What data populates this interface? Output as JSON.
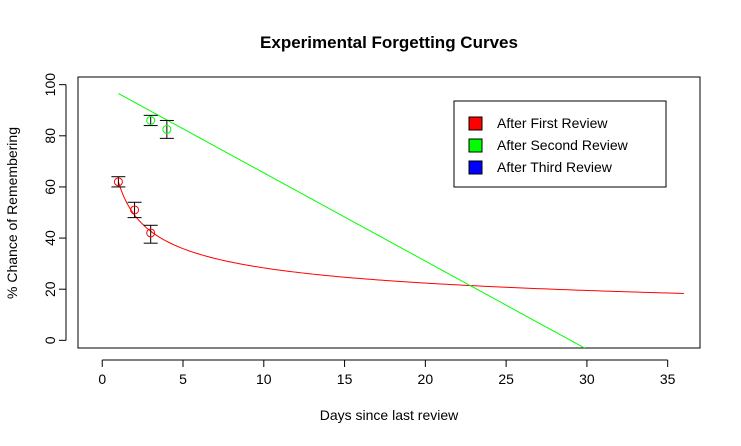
{
  "chart_data": {
    "type": "scatter",
    "title": "Experimental Forgetting Curves",
    "xlabel": "Days since last review",
    "ylabel": "% Chance of Remembering",
    "xlim": [
      -1.5,
      37
    ],
    "ylim": [
      -3,
      103
    ],
    "xticks": [
      0,
      5,
      10,
      15,
      20,
      25,
      30,
      35
    ],
    "yticks": [
      0,
      20,
      40,
      60,
      80,
      100
    ],
    "grid": false,
    "legend_position": "top-right",
    "legend": [
      {
        "label": "After First Review",
        "color": "#ff0000"
      },
      {
        "label": "After Second Review",
        "color": "#00ff00"
      },
      {
        "label": "After Third Review",
        "color": "#0000ff"
      }
    ],
    "series": [
      {
        "name": "After First Review",
        "color": "#ff0000",
        "points": [
          {
            "x": 1,
            "y": 62,
            "err_low": 60,
            "err_high": 64
          },
          {
            "x": 2,
            "y": 51,
            "err_low": 48,
            "err_high": 54
          },
          {
            "x": 3,
            "y": 42,
            "err_low": 38,
            "err_high": 45
          }
        ],
        "fit": {
          "kind": "power",
          "a": 62,
          "b": -0.34,
          "x_from": 1,
          "x_to": 36
        }
      },
      {
        "name": "After Second Review",
        "color": "#00ff00",
        "points": [
          {
            "x": 3,
            "y": 86,
            "err_low": 84,
            "err_high": 88
          },
          {
            "x": 4,
            "y": 82.5,
            "err_low": 79,
            "err_high": 86
          }
        ],
        "fit": {
          "kind": "linear",
          "slope": -3.45,
          "intercept": 100,
          "x_from": 1,
          "x_to": 36
        }
      },
      {
        "name": "After Third Review",
        "color": "#0000ff",
        "points": []
      }
    ]
  }
}
